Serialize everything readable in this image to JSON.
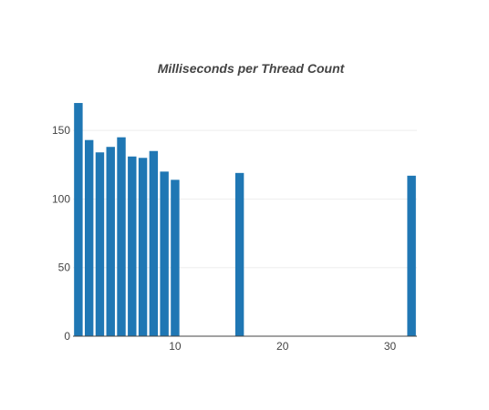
{
  "chart_data": {
    "type": "bar",
    "title": "Milliseconds per Thread Count",
    "xlabel": "",
    "ylabel": "",
    "x": [
      1,
      2,
      3,
      4,
      5,
      6,
      7,
      8,
      9,
      10,
      16,
      32
    ],
    "values": [
      170,
      143,
      134,
      138,
      145,
      131,
      130,
      135,
      120,
      114,
      119,
      117
    ],
    "xlim": [
      0.5,
      32.5
    ],
    "ylim": [
      0,
      178
    ],
    "xticks": [
      10,
      20,
      30
    ],
    "yticks": [
      0,
      50,
      100,
      150
    ],
    "grid": true,
    "bar_color": "#1f77b4",
    "grid_color": "#eeeeee",
    "axis_color": "#444444"
  }
}
